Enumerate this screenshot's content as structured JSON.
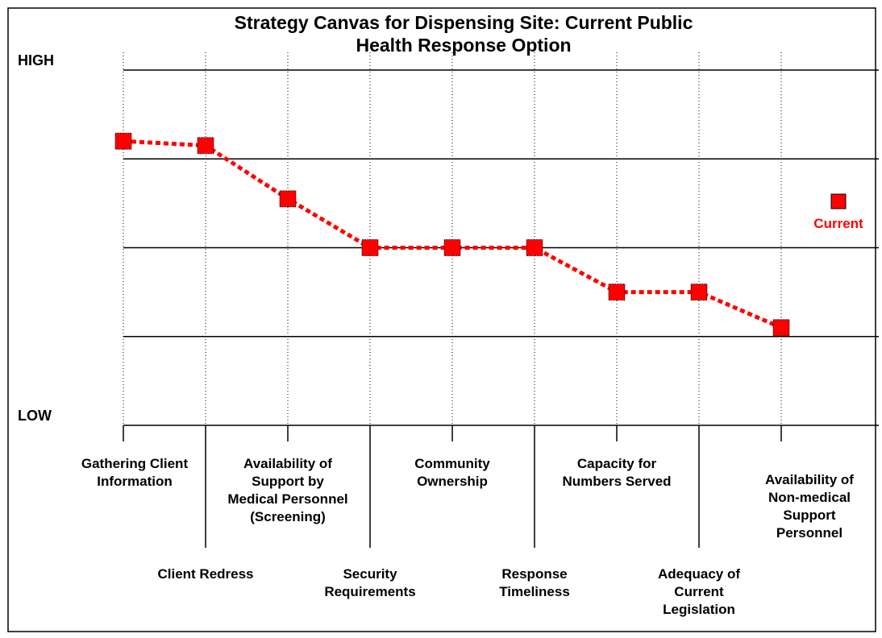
{
  "chart_data": {
    "type": "line",
    "title": "Strategy Canvas for Dispensing Site: Current Public Health Response Option",
    "categories": [
      "Gathering Client Information",
      "Client Redress",
      "Availability of Support by Medical Personnel (Screening)",
      "Security Requirements",
      "Community Ownership",
      "Response Timeliness",
      "Capacity for Numbers Served",
      "Adequacy of Current Legislation",
      "Availability of Non-medical Support Personnel"
    ],
    "series": [
      {
        "name": "Current",
        "color": "#ff0000",
        "values": [
          3.2,
          3.15,
          2.55,
          2,
          2,
          2,
          1.5,
          1.5,
          1.1
        ]
      }
    ],
    "ylim": [
      0,
      4
    ],
    "yticks": [
      {
        "value": 0,
        "label": "LOW"
      },
      {
        "value": 1,
        "label": null
      },
      {
        "value": 2,
        "label": null
      },
      {
        "value": 3,
        "label": null
      },
      {
        "value": 4,
        "label": "HIGH"
      }
    ],
    "grid": true
  }
}
